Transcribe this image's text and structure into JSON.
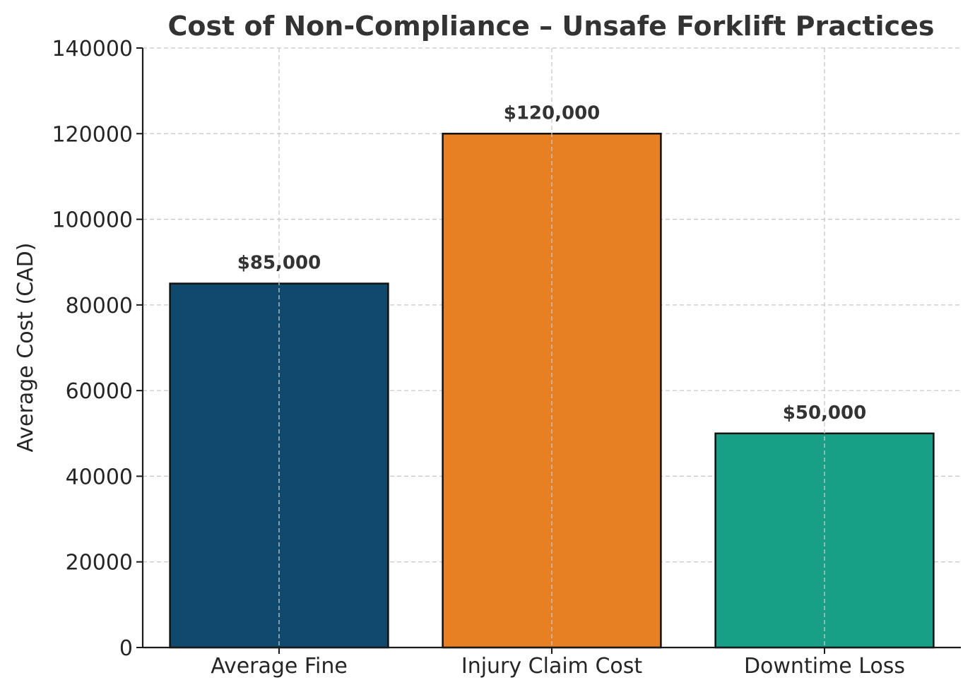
{
  "chart_data": {
    "type": "bar",
    "title": "Cost of Non-Compliance – Unsafe Forklift Practices",
    "xlabel": "",
    "ylabel": "Average Cost (CAD)",
    "categories": [
      "Average Fine",
      "Injury Claim Cost",
      "Downtime Loss"
    ],
    "values": [
      85000,
      120000,
      50000
    ],
    "data_labels": [
      "$85,000",
      "$120,000",
      "$50,000"
    ],
    "colors": [
      "#0f4a6e",
      "#e68023",
      "#17a085"
    ],
    "ylim": [
      0,
      140000
    ],
    "yticks": [
      0,
      20000,
      40000,
      60000,
      80000,
      100000,
      120000,
      140000
    ],
    "grid": true,
    "legend": "none"
  }
}
